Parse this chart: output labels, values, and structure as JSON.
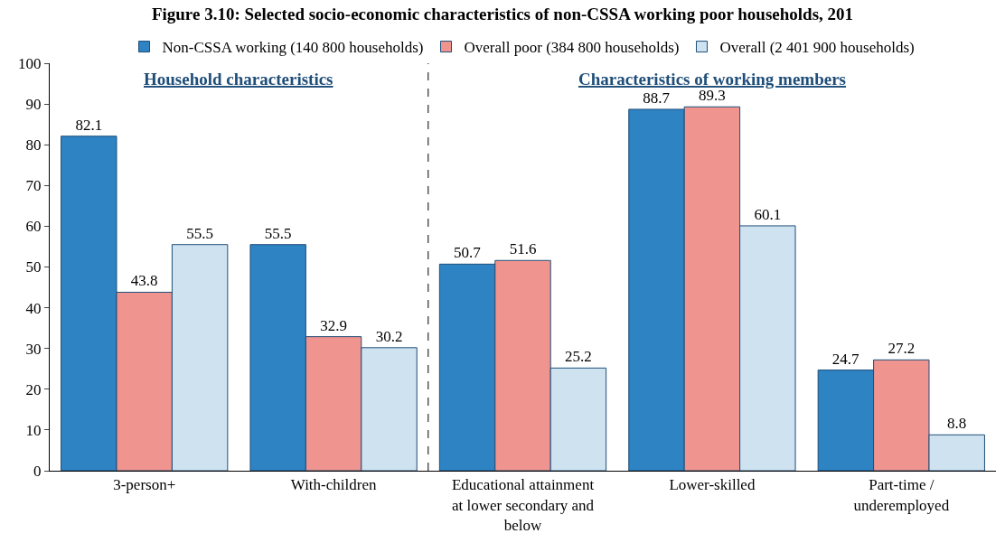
{
  "chart_data": {
    "type": "bar",
    "title": "Figure 3.10: Selected socio-economic characteristics of non-CSSA working poor households, 201",
    "categories": [
      "3-person+",
      "With-children",
      "Educational attainment at lower secondary and below",
      "Lower-skilled",
      "Part-time / underemployed"
    ],
    "series": [
      {
        "name": "Non-CSSA working (140 800 households)",
        "color": "#2e83c3",
        "values": [
          82.1,
          55.5,
          50.7,
          88.7,
          24.7
        ]
      },
      {
        "name": "Overall poor (384 800 households)",
        "color": "#f0948f",
        "values": [
          43.8,
          32.9,
          51.6,
          89.3,
          27.2
        ]
      },
      {
        "name": "Overall (2 401 900 households)",
        "color": "#cfe2f0",
        "values": [
          55.5,
          30.2,
          25.2,
          60.1,
          8.8
        ]
      }
    ],
    "ylim": [
      0,
      100
    ],
    "yticks": [
      0,
      10,
      20,
      30,
      40,
      50,
      60,
      70,
      80,
      90,
      100
    ],
    "annotations": [
      "Household characteristics",
      "Characteristics of working members"
    ],
    "data_labels": true,
    "legend": "top"
  }
}
